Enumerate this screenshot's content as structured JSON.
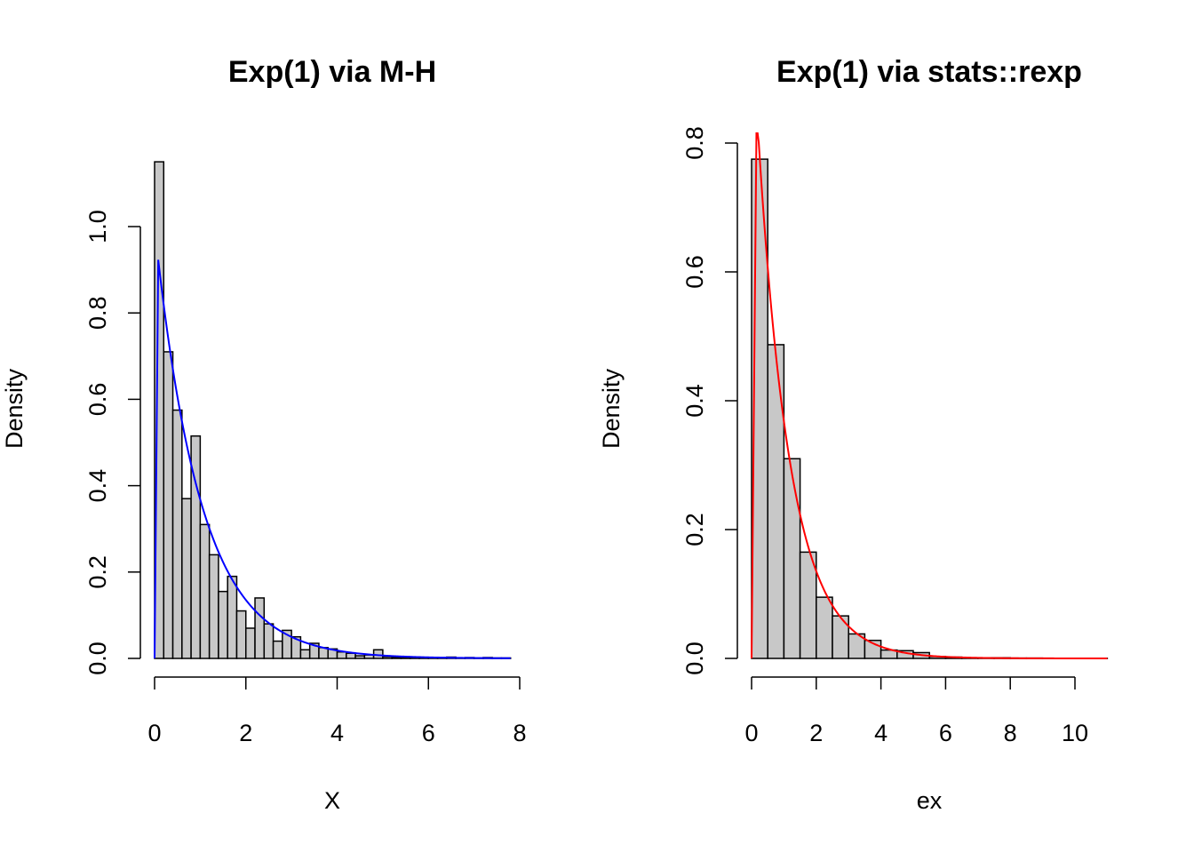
{
  "chart_data": [
    {
      "type": "bar",
      "title": "Exp(1) via M-H",
      "xlabel": "X",
      "ylabel": "Density",
      "xlim": [
        0,
        8
      ],
      "ylim": [
        0,
        1.15
      ],
      "xticks": [
        "0",
        "2",
        "4",
        "6",
        "8"
      ],
      "yticks": [
        "0.0",
        "0.2",
        "0.4",
        "0.6",
        "0.8",
        "1.0"
      ],
      "bin_start": 0,
      "bin_width": 0.2,
      "values": [
        1.15,
        0.71,
        0.575,
        0.37,
        0.515,
        0.31,
        0.24,
        0.155,
        0.19,
        0.11,
        0.07,
        0.14,
        0.08,
        0.04,
        0.065,
        0.05,
        0.02,
        0.035,
        0.025,
        0.022,
        0.015,
        0.012,
        0.006,
        0.008,
        0.02,
        0.004,
        0.003,
        0.002,
        0.003,
        0.001,
        0.002,
        0.001,
        0.003,
        0.001,
        0.002,
        0.001,
        0.002,
        0.001,
        0.001
      ],
      "curve": {
        "function": "dexp(x, 1)",
        "color": "#0000ff",
        "x_from": 0.08,
        "x_to": 7.8
      },
      "grid": false
    },
    {
      "type": "bar",
      "title": "Exp(1) via stats::rexp",
      "xlabel": "ex",
      "ylabel": "Density",
      "xlim": [
        0,
        11
      ],
      "ylim": [
        0,
        0.8
      ],
      "xticks": [
        "0",
        "2",
        "4",
        "6",
        "8",
        "10"
      ],
      "yticks": [
        "0.0",
        "0.2",
        "0.4",
        "0.6",
        "0.8"
      ],
      "bin_start": 0,
      "bin_width": 0.5,
      "values": [
        0.775,
        0.487,
        0.31,
        0.165,
        0.095,
        0.066,
        0.038,
        0.028,
        0.013,
        0.012,
        0.009,
        0.003,
        0.002,
        0.001,
        0.001,
        0.001,
        0.0005,
        0.0005,
        0.0003,
        0.0003,
        0.0002,
        0.0002
      ],
      "curve": {
        "function": "dexp(x, 1)",
        "color": "#ff0000",
        "x_from": 0.15,
        "x_to": 11
      },
      "grid": false
    }
  ]
}
